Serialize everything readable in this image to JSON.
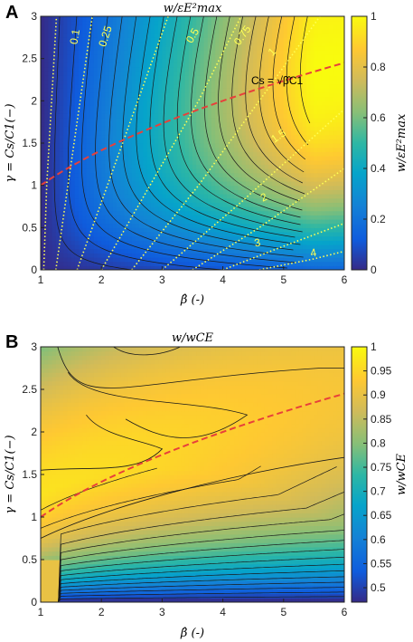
{
  "chart_data": [
    {
      "type": "heatmap",
      "panel": "A",
      "title": "w/εE²max",
      "xlabel": "β̂ (-)",
      "ylabel": "γ = Cs/C1(−)",
      "xlim": [
        1,
        6
      ],
      "ylim": [
        0,
        3
      ],
      "x_ticks": [
        "1",
        "2",
        "3",
        "4",
        "5",
        "6"
      ],
      "y_ticks": [
        "0",
        "0.5",
        "1",
        "1.5",
        "2",
        "2.5",
        "3"
      ],
      "colorbar": {
        "label": "w/εE²max",
        "range": [
          0,
          1
        ],
        "ticks": [
          "0",
          "0.2",
          "0.4",
          "0.6",
          "0.8",
          "1"
        ]
      },
      "dotted_contour_labels": [
        "0.1",
        "0.25",
        "0.5",
        "0.75",
        "1",
        "1.5",
        "2",
        "3",
        "4"
      ],
      "dashed_curve_label": "Cs = √β̂C1",
      "grid": false
    },
    {
      "type": "heatmap",
      "panel": "B",
      "title": "w/wCE",
      "xlabel": "β̂ (-)",
      "ylabel": "γ = Cs/C1(−)",
      "xlim": [
        1,
        6
      ],
      "ylim": [
        0,
        3
      ],
      "x_ticks": [
        "1",
        "2",
        "3",
        "4",
        "5",
        "6"
      ],
      "y_ticks": [
        "0",
        "0.5",
        "1",
        "1.5",
        "2",
        "2.5",
        "3"
      ],
      "colorbar": {
        "label": "w/wCE",
        "range": [
          0.47,
          1
        ],
        "ticks": [
          "0.5",
          "0.55",
          "0.6",
          "0.65",
          "0.7",
          "0.75",
          "0.8",
          "0.85",
          "0.9",
          "0.95",
          "1"
        ]
      },
      "dashed_curve_label": "",
      "grid": false
    }
  ],
  "colors": {
    "dotted_contours": "#ffff55",
    "dashed_curve": "#e8403a",
    "contour_lines": "#1a1a1a"
  }
}
